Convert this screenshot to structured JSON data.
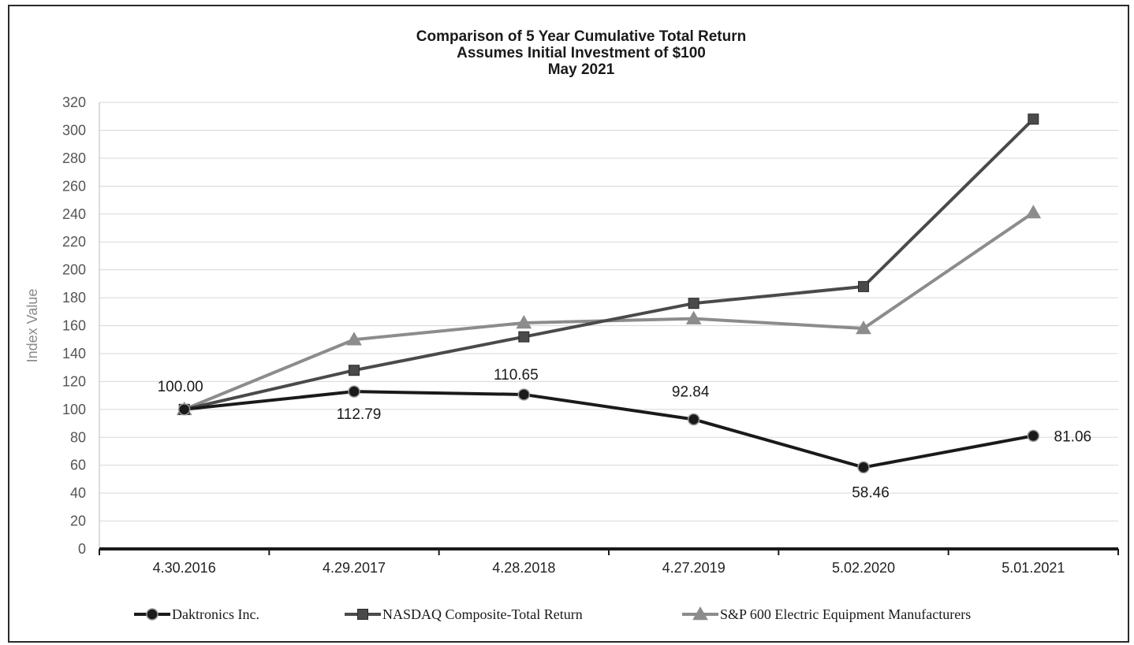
{
  "chart_data": {
    "type": "line",
    "title": [
      "Comparison of 5 Year Cumulative Total Return",
      "Assumes Initial Investment of $100",
      "May 2021"
    ],
    "ylabel": "Index Value",
    "xlabel": "",
    "ylim": [
      0,
      320
    ],
    "yticks": [
      0,
      20,
      40,
      60,
      80,
      100,
      120,
      140,
      160,
      180,
      200,
      220,
      240,
      260,
      280,
      300,
      320
    ],
    "grid": true,
    "legend_position": "bottom",
    "categories": [
      "4.30.2016",
      "4.29.2017",
      "4.28.2018",
      "4.27.2019",
      "5.02.2020",
      "5.01.2021"
    ],
    "series": [
      {
        "name": "Daktronics Inc.",
        "marker": "circle",
        "color": "#1a1a1a",
        "values": [
          100.0,
          112.79,
          110.65,
          92.84,
          58.46,
          81.06
        ],
        "labels": [
          "100.00",
          "112.79",
          "110.65",
          "92.84",
          "58.46",
          "81.06"
        ]
      },
      {
        "name": "NASDAQ Composite-Total Return",
        "marker": "square",
        "color": "#4a4a4a",
        "values": [
          100,
          128,
          152,
          176,
          188,
          308
        ]
      },
      {
        "name": "S&P 600 Electric Equipment Manufacturers",
        "marker": "triangle",
        "color": "#8c8c8c",
        "values": [
          100,
          150,
          162,
          165,
          158,
          241
        ]
      }
    ]
  }
}
